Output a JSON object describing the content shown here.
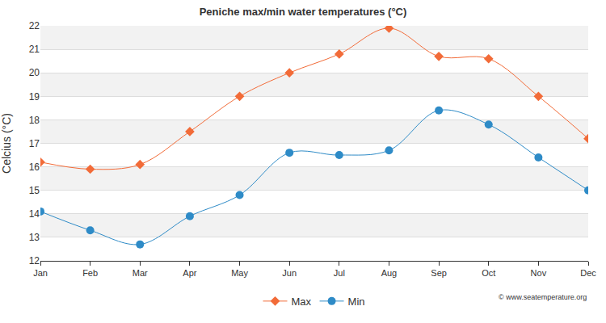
{
  "chart_data": {
    "type": "line",
    "title": "Peniche max/min water temperatures (°C)",
    "y_label": "Celcius (°C)",
    "source": "© www.seatemperature.org",
    "categories": [
      "Jan",
      "Feb",
      "Mar",
      "Apr",
      "May",
      "Jun",
      "Jul",
      "Aug",
      "Sep",
      "Oct",
      "Nov",
      "Dec"
    ],
    "series": [
      {
        "name": "Max",
        "color": "#f26b38",
        "marker": "diamond",
        "line_style": "spline",
        "values": [
          16.2,
          15.9,
          16.1,
          17.5,
          19.0,
          20.0,
          20.8,
          21.9,
          20.7,
          20.6,
          19.0,
          17.2
        ]
      },
      {
        "name": "Min",
        "color": "#2e8bc7",
        "marker": "circle",
        "line_style": "spline",
        "values": [
          14.1,
          13.3,
          12.7,
          13.9,
          14.8,
          16.6,
          16.5,
          16.7,
          18.4,
          17.8,
          16.4,
          15.0
        ]
      }
    ],
    "ylim": [
      12,
      22
    ],
    "yticks": [
      12,
      13,
      14,
      15,
      16,
      17,
      18,
      19,
      20,
      21,
      22
    ],
    "grid": true,
    "legend": "bottom"
  }
}
